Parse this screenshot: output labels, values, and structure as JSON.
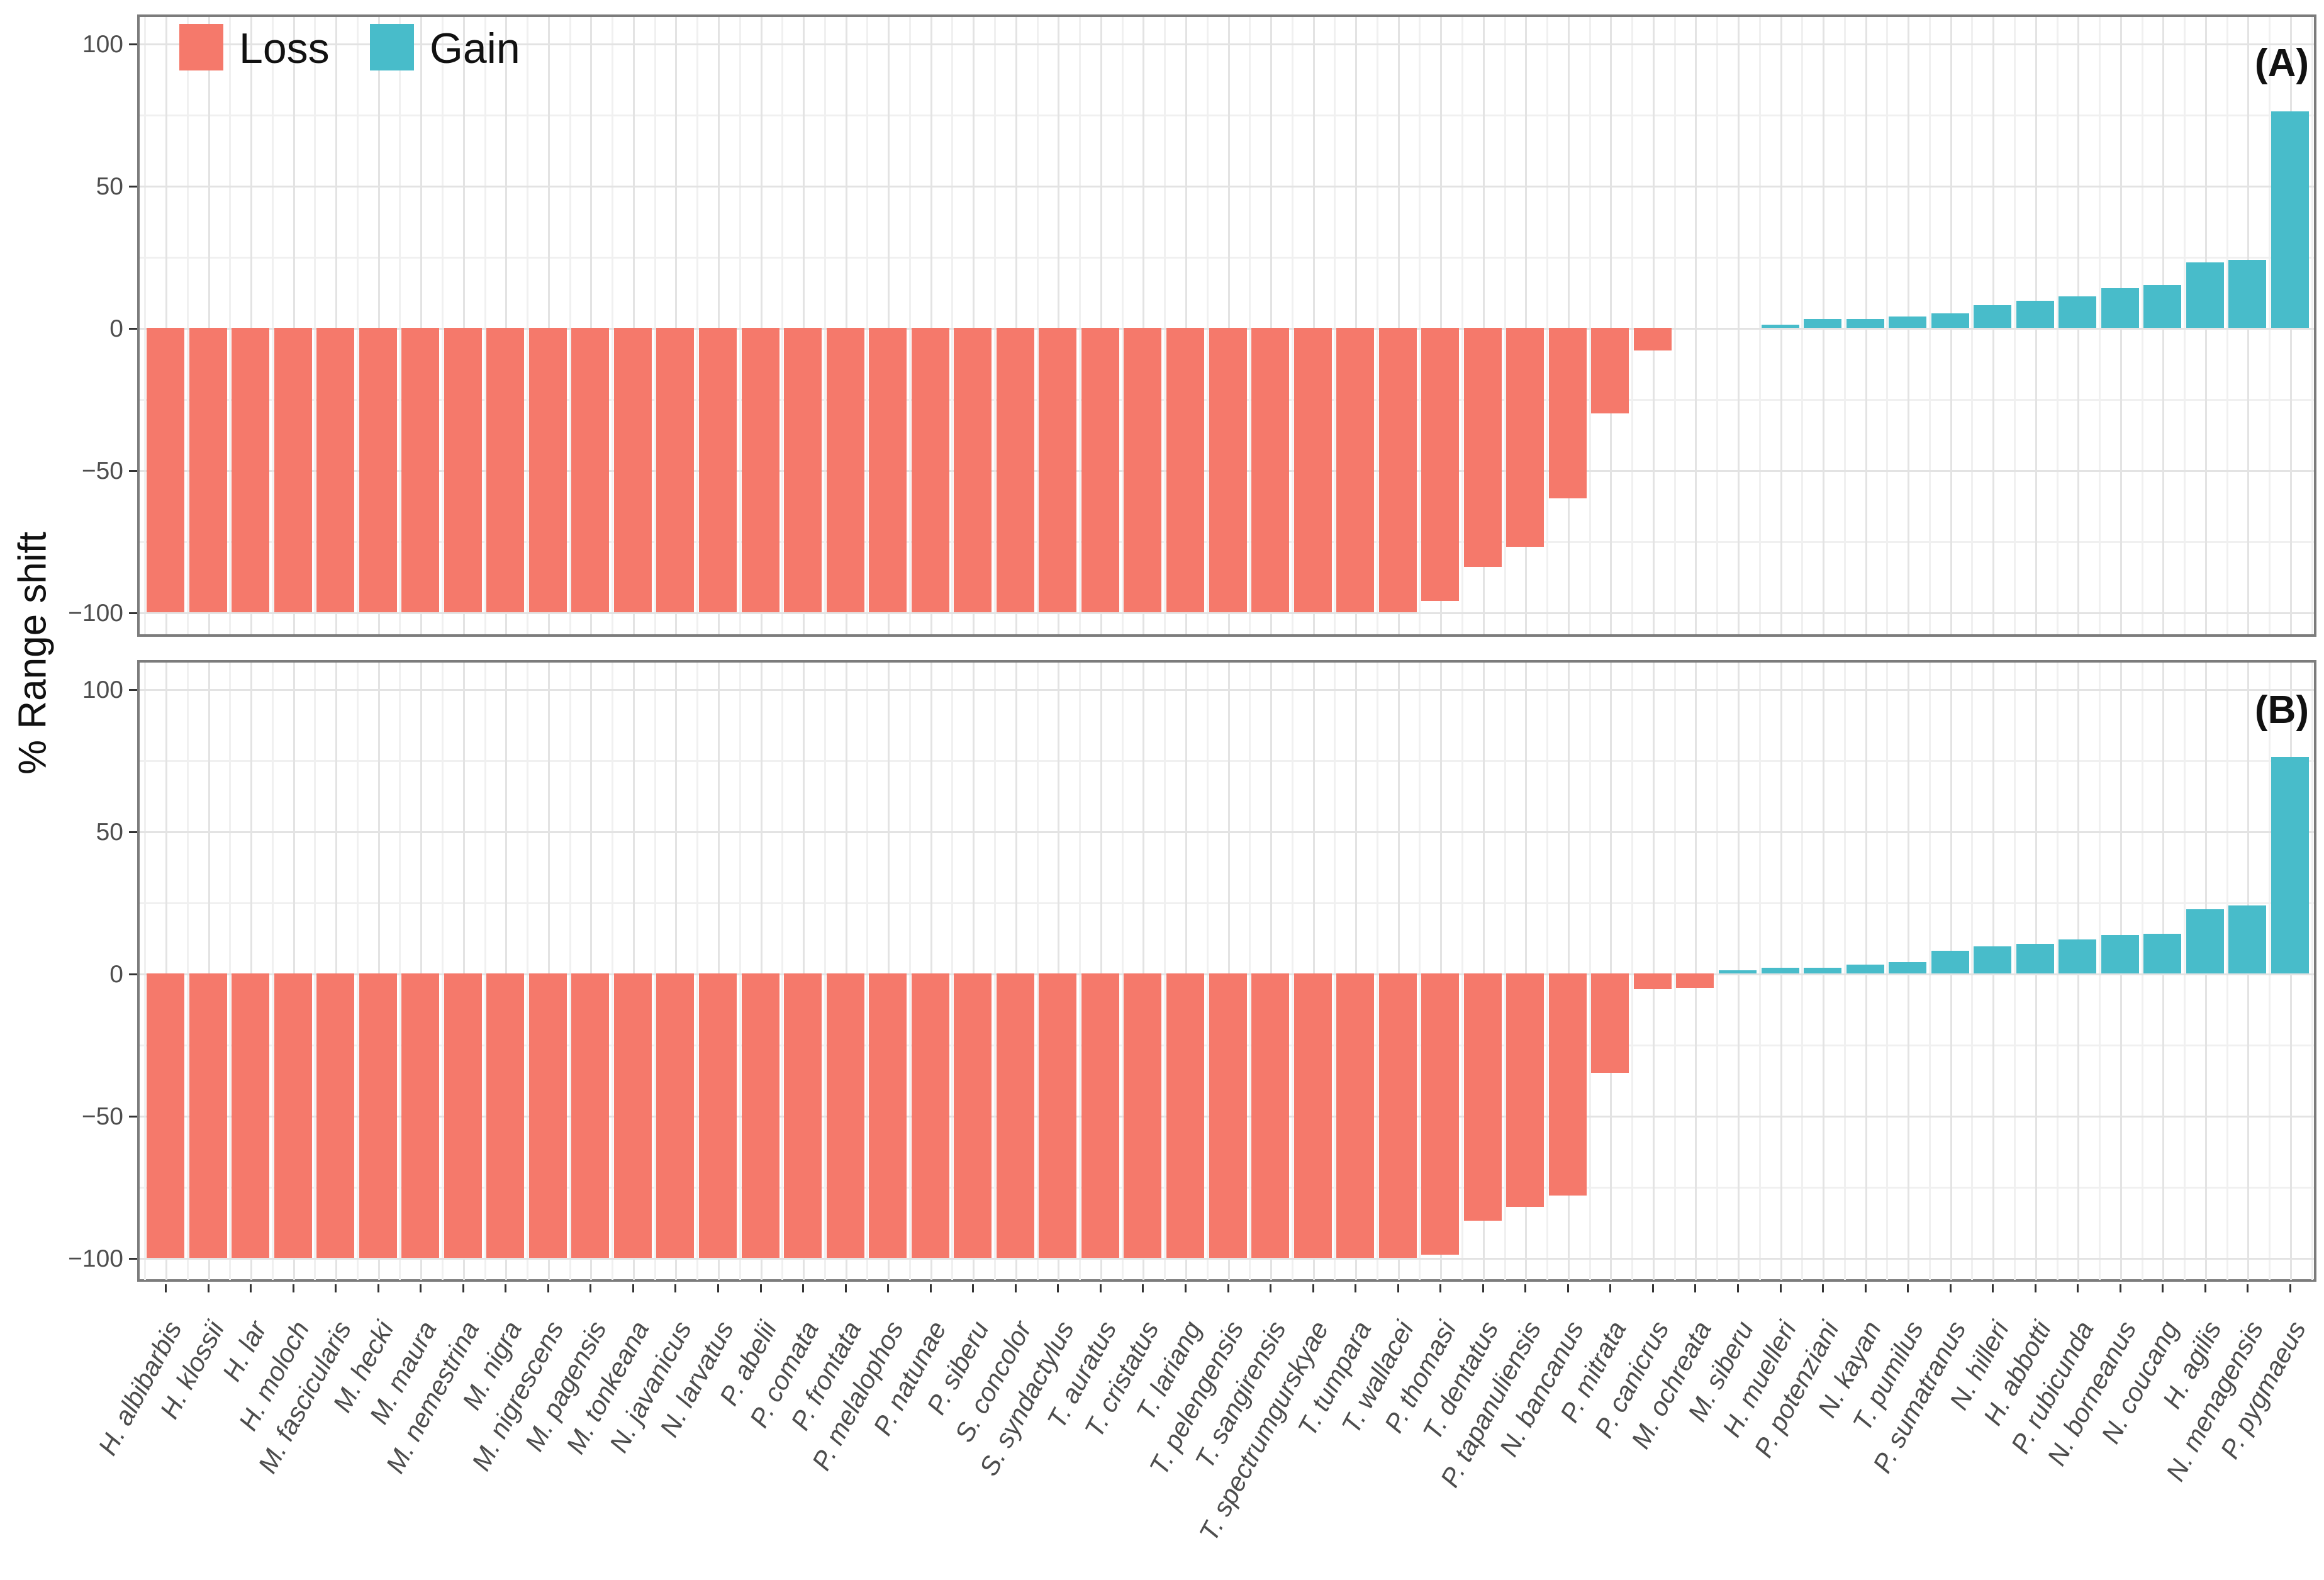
{
  "figure": {
    "ylabel": "% Range shift",
    "panel_a_tag": "(A)",
    "panel_b_tag": "(B)",
    "legend": {
      "loss_label": "Loss",
      "gain_label": "Gain"
    },
    "colors": {
      "loss": "#f5796b",
      "gain": "#48bcca",
      "grid_major": "#e3e3e3",
      "grid_minor": "#f0f0f0",
      "panel_border": "#7c7c7c",
      "tick_text": "#4d4d4d"
    },
    "ytick_labels": [
      "100",
      "50",
      "0",
      "−50",
      "−100"
    ]
  },
  "chart_data": [
    {
      "type": "bar",
      "title": "(A)",
      "ylabel": "% Range shift",
      "ylim": [
        -109,
        109
      ],
      "yticks": [
        100,
        50,
        0,
        -50,
        -100
      ],
      "grid": true,
      "legend_position": "top-left-inside",
      "legend": [
        {
          "name": "Loss",
          "color": "#f5796b"
        },
        {
          "name": "Gain",
          "color": "#48bcca"
        }
      ],
      "categories": [
        "H. albibarbis",
        "H. klossii",
        "H. lar",
        "H. moloch",
        "M. fascicularis",
        "M. hecki",
        "M. maura",
        "M. nemestrina",
        "M. nigra",
        "M. nigrescens",
        "M. pagensis",
        "M. tonkeana",
        "N. javanicus",
        "N. larvatus",
        "P. abelii",
        "P. comata",
        "P. frontata",
        "P. melalophos",
        "P. natunae",
        "P. siberu",
        "S. concolor",
        "S. syndactylus",
        "T. auratus",
        "T. cristatus",
        "T. lariang",
        "T. pelengensis",
        "T. sangirensis",
        "T. spectrumgurskyae",
        "T. tumpara",
        "T. wallacei",
        "P. thomasi",
        "T. dentatus",
        "P. tapanuliensis",
        "N. bancanus",
        "P. mitrata",
        "P. canicrus",
        "M. ochreata",
        "M. siberu",
        "H. muelleri",
        "P. potenziani",
        "N. kayan",
        "T. pumilus",
        "P. sumatranus",
        "N. hilleri",
        "H. abbotti",
        "P. rubicunda",
        "N. borneanus",
        "N. coucang",
        "H. agilis",
        "N. menagensis",
        "P. pygmaeus"
      ],
      "values": [
        -100,
        -100,
        -100,
        -100,
        -100,
        -100,
        -100,
        -100,
        -100,
        -100,
        -100,
        -100,
        -100,
        -100,
        -100,
        -100,
        -100,
        -100,
        -100,
        -100,
        -100,
        -100,
        -100,
        -100,
        -100,
        -100,
        -100,
        -100,
        -100,
        -100,
        -96,
        -84,
        -77,
        -60,
        -30,
        -8,
        0,
        0,
        1,
        3,
        3,
        4,
        5,
        8,
        9.5,
        11,
        14,
        15,
        23,
        24,
        76
      ]
    },
    {
      "type": "bar",
      "title": "(B)",
      "ylabel": "% Range shift",
      "ylim": [
        -109,
        109
      ],
      "yticks": [
        100,
        50,
        0,
        -50,
        -100
      ],
      "grid": true,
      "legend_position": "none",
      "categories": [
        "H. albibarbis",
        "H. klossii",
        "H. lar",
        "H. moloch",
        "M. fascicularis",
        "M. hecki",
        "M. maura",
        "M. nemestrina",
        "M. nigra",
        "M. nigrescens",
        "M. pagensis",
        "M. tonkeana",
        "N. javanicus",
        "N. larvatus",
        "P. abelii",
        "P. comata",
        "P. frontata",
        "P. melalophos",
        "P. natunae",
        "P. siberu",
        "S. concolor",
        "S. syndactylus",
        "T. auratus",
        "T. cristatus",
        "T. lariang",
        "T. pelengensis",
        "T. sangirensis",
        "T. spectrumgurskyae",
        "T. tumpara",
        "T. wallacei",
        "P. thomasi",
        "T. dentatus",
        "P. tapanuliensis",
        "N. bancanus",
        "P. mitrata",
        "P. canicrus",
        "M. ochreata",
        "M. siberu",
        "H. muelleri",
        "P. potenziani",
        "N. kayan",
        "T. pumilus",
        "P. sumatranus",
        "N. hilleri",
        "H. abbotti",
        "P. rubicunda",
        "N. borneanus",
        "N. coucang",
        "H. agilis",
        "N. menagensis",
        "P. pygmaeus"
      ],
      "values": [
        -100,
        -100,
        -100,
        -100,
        -100,
        -100,
        -100,
        -100,
        -100,
        -100,
        -100,
        -100,
        -100,
        -100,
        -100,
        -100,
        -100,
        -100,
        -100,
        -100,
        -100,
        -100,
        -100,
        -100,
        -100,
        -100,
        -100,
        -100,
        -100,
        -100,
        -99,
        -87,
        -82,
        -78,
        -35,
        -5.5,
        -5,
        1,
        2,
        2,
        3,
        4,
        8,
        9.5,
        10.5,
        12,
        13.5,
        14,
        22.5,
        24,
        76
      ]
    }
  ]
}
